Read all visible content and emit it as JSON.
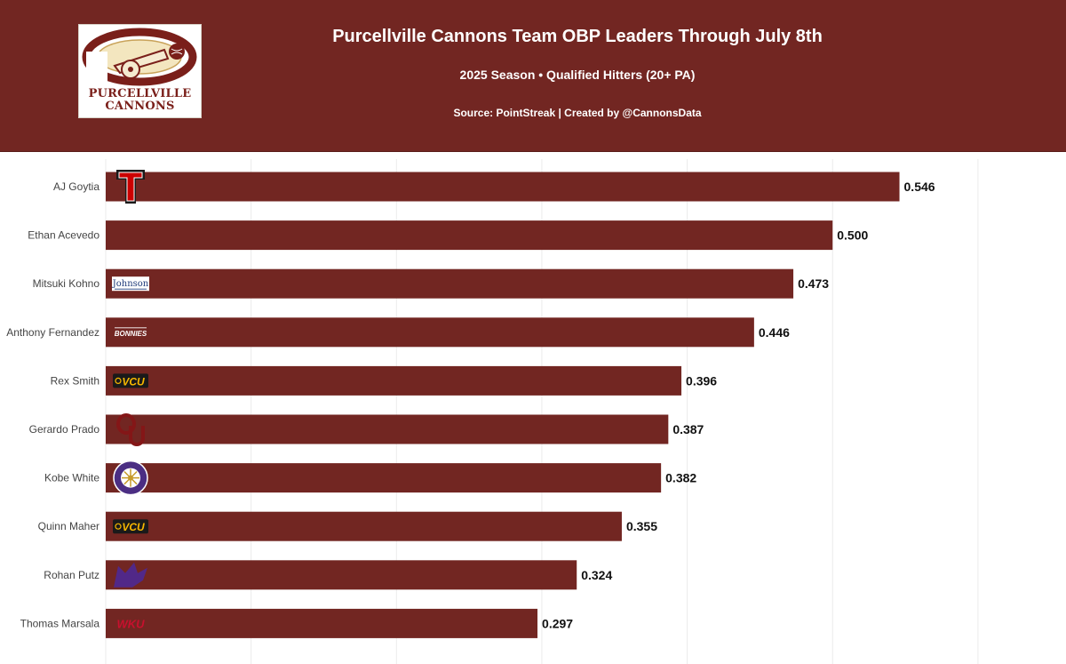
{
  "header": {
    "title": "Purcellville Cannons Team OBP Leaders Through July 8th",
    "subtitle": "2025 Season • Qualified Hitters (20+ PA)",
    "source": "Source: PointStreak | Created by @CannonsData",
    "logo_line1": "PURCELLVILLE",
    "logo_line2": "CANNONS"
  },
  "colors": {
    "header_bg": "#722622",
    "bar": "#722622",
    "grid": "#ebebeb",
    "logo_cream": "#f3e6bf",
    "logo_red": "#7a1f1a"
  },
  "chart_data": {
    "type": "bar",
    "orientation": "horizontal",
    "title": "Purcellville Cannons Team OBP Leaders Through July 8th",
    "xlabel": "",
    "ylabel": "",
    "xlim": [
      0,
      0.6
    ],
    "grid": true,
    "categories": [
      "AJ Goytia",
      "Ethan Acevedo",
      "Mitsuki Kohno",
      "Anthony Fernandez",
      "Rex Smith",
      "Gerardo Prado",
      "Kobe White",
      "Quinn Maher",
      "Rohan Putz",
      "Thomas Marsala"
    ],
    "values": [
      0.546,
      0.5,
      0.473,
      0.446,
      0.396,
      0.387,
      0.382,
      0.355,
      0.324,
      0.297
    ],
    "value_labels": [
      "0.546",
      "0.500",
      "0.473",
      "0.446",
      "0.396",
      "0.387",
      "0.382",
      "0.355",
      "0.324",
      "0.297"
    ],
    "team_logos": [
      "texas-tech-icon",
      "",
      "johnson-icon",
      "bonnies-icon",
      "vcu-icon",
      "oklahoma-icon",
      "lsu-shreveport-icon",
      "vcu-icon",
      "kansas-state-icon",
      "wku-icon"
    ],
    "logo_texts": [
      "",
      "",
      "Johnson",
      "BONNIES",
      "VCU",
      "",
      "",
      "VCU",
      "",
      "WKU"
    ]
  }
}
